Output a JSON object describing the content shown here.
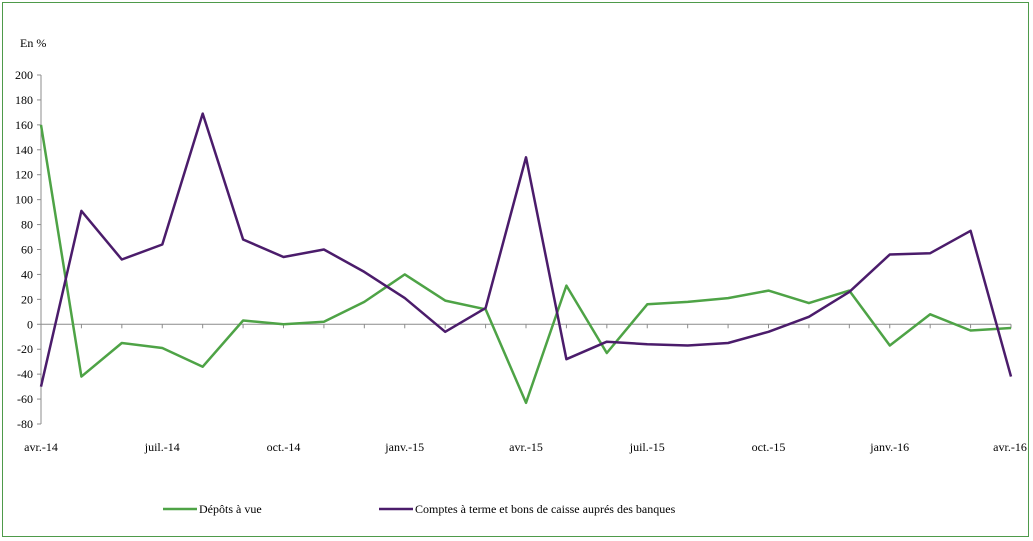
{
  "chart_data": {
    "type": "line",
    "ylabel": "En %",
    "ylim": [
      -80,
      200
    ],
    "yticks": [
      200,
      180,
      160,
      140,
      120,
      100,
      80,
      60,
      40,
      20,
      0,
      -20,
      -40,
      -60,
      -80
    ],
    "x_tick_labels": [
      "avr.-14",
      "juil.-14",
      "oct.-14",
      "janv.-15",
      "avr.-15",
      "juil.-15",
      "oct.-15",
      "janv.-16",
      "avr.-16"
    ],
    "grid": false,
    "legend_position": "bottom",
    "series": [
      {
        "name": "Dépôts à vue",
        "color": "#4ea346",
        "values": [
          160,
          -42,
          -15,
          -19,
          -34,
          3,
          0,
          2,
          18,
          40,
          19,
          12,
          -63,
          31,
          -23,
          16,
          18,
          21,
          27,
          17,
          27,
          -17,
          8,
          -5,
          -3
        ]
      },
      {
        "name": "Comptes à terme et bons de caisse auprés des banques",
        "color": "#4b1c6b",
        "values": [
          -50,
          91,
          52,
          64,
          169,
          68,
          54,
          60,
          42,
          21,
          -6,
          13,
          134,
          -28,
          -14,
          -16,
          -17,
          -15,
          -6,
          6,
          26,
          56,
          57,
          75,
          -42
        ]
      }
    ]
  }
}
